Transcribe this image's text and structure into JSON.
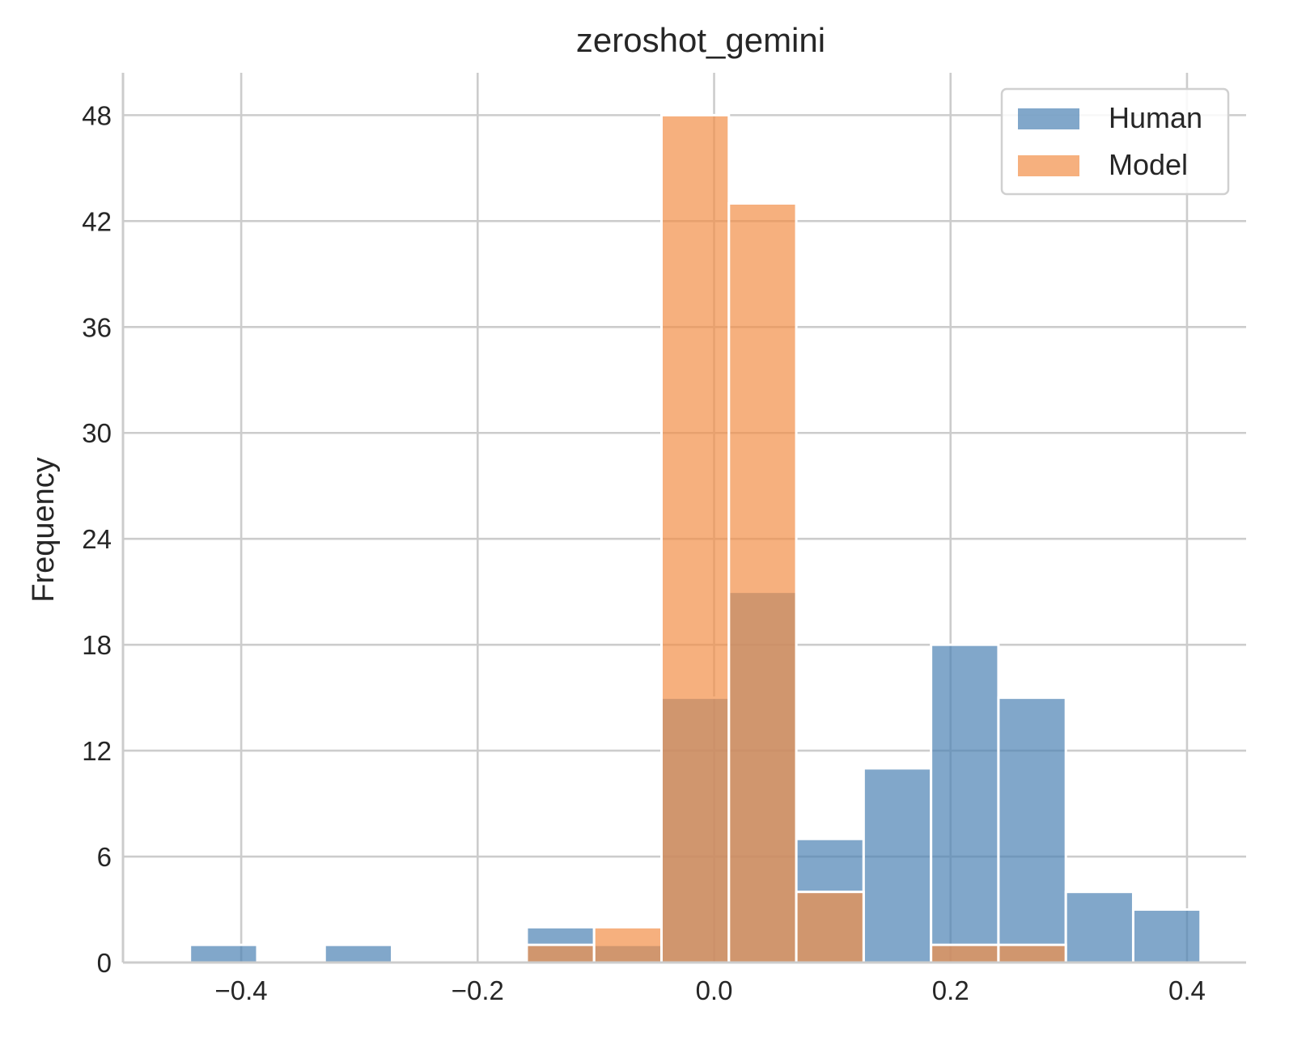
{
  "chart_data": {
    "type": "bar",
    "subtype": "histogram",
    "title": "zeroshot_gemini",
    "xlabel": "",
    "ylabel": "Frequency",
    "xlim": [
      -0.5,
      0.45
    ],
    "ylim": [
      0,
      50.4
    ],
    "x_ticks": [
      -0.4,
      -0.2,
      0.0,
      0.2,
      0.4
    ],
    "x_tick_labels": [
      "−0.4",
      "−0.2",
      "0.0",
      "0.2",
      "0.4"
    ],
    "y_ticks": [
      0,
      6,
      12,
      18,
      24,
      30,
      36,
      42,
      48
    ],
    "y_tick_labels": [
      "0",
      "6",
      "12",
      "18",
      "24",
      "30",
      "36",
      "42",
      "48"
    ],
    "grid": true,
    "legend_position": "top-right",
    "bin_edges": [
      -0.4434,
      -0.3864,
      -0.3294,
      -0.2724,
      -0.2154,
      -0.1585,
      -0.1015,
      -0.0445,
      0.0125,
      0.0695,
      0.1265,
      0.1835,
      0.2405,
      0.2975,
      0.3545,
      0.4115
    ],
    "series": [
      {
        "name": "Human",
        "color": "#4c82b4",
        "values": [
          1,
          0,
          1,
          0,
          0,
          2,
          1,
          15,
          21,
          7,
          11,
          18,
          15,
          4,
          3
        ]
      },
      {
        "name": "Model",
        "color": "#f28e47",
        "values": [
          0,
          0,
          0,
          0,
          0,
          1,
          2,
          48,
          43,
          4,
          0,
          1,
          1,
          0,
          0
        ]
      }
    ]
  }
}
